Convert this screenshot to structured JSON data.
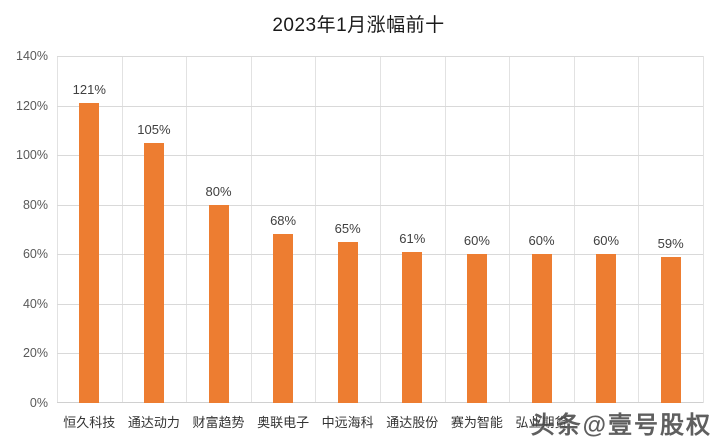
{
  "chart_data": {
    "type": "bar",
    "title": "2023年1月涨幅前十",
    "categories": [
      "恒久科技",
      "通达动力",
      "财富趋势",
      "奥联电子",
      "中远海科",
      "通达股份",
      "赛为智能",
      "弘业期货",
      "",
      ""
    ],
    "values": [
      121,
      105,
      80,
      68,
      65,
      61,
      60,
      60,
      60,
      59
    ],
    "data_labels": [
      "121%",
      "105%",
      "80%",
      "68%",
      "65%",
      "61%",
      "60%",
      "60%",
      "60%",
      "59%"
    ],
    "xlabel": "",
    "ylabel": "",
    "ylim": [
      0,
      140
    ],
    "ytick_step": 20,
    "ytick_labels": [
      "0%",
      "20%",
      "40%",
      "60%",
      "80%",
      "100%",
      "120%",
      "140%"
    ],
    "grid": "horizontal and vertical, light gray",
    "legend": "none",
    "bar_color": "#ED7D31",
    "note": "labels of the 9th and 10th categories are hidden behind a watermark"
  },
  "watermark": {
    "text": "头条@壹号股权",
    "color": "#4a4a4a"
  },
  "colors": {
    "background": "#ffffff",
    "bar": "#ED7D31",
    "gridline": "#d9d9d9",
    "title_text": "#1a1a1a",
    "axis_tick_text": "#595959",
    "data_label_text": "#404040",
    "category_label_text": "#333333"
  }
}
